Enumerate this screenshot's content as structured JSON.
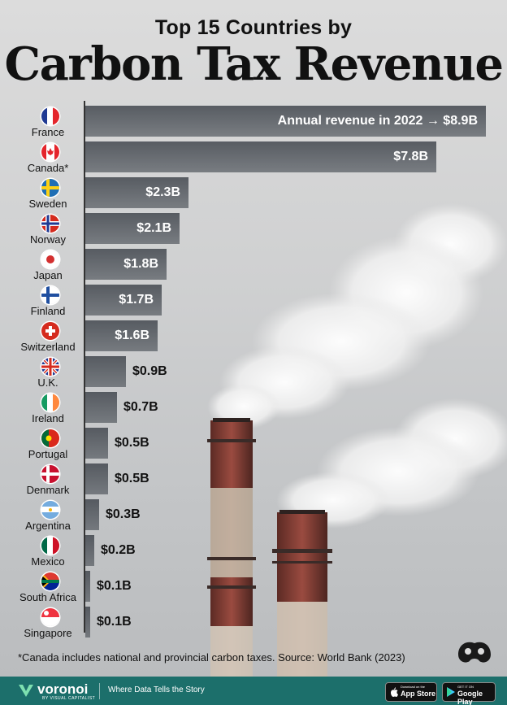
{
  "chart_data": {
    "type": "bar",
    "orientation": "horizontal",
    "subtitle": "Top 15 Countries by",
    "title": "Carbon Tax Revenue",
    "categories": [
      "France",
      "Canada*",
      "Sweden",
      "Norway",
      "Japan",
      "Finland",
      "Switzerland",
      "U.K.",
      "Ireland",
      "Portugal",
      "Denmark",
      "Argentina",
      "Mexico",
      "South Africa",
      "Singapore"
    ],
    "values": [
      8.9,
      7.8,
      2.3,
      2.1,
      1.8,
      1.7,
      1.6,
      0.9,
      0.7,
      0.5,
      0.5,
      0.3,
      0.2,
      0.1,
      0.1
    ],
    "value_labels": [
      "$8.9B",
      "$7.8B",
      "$2.3B",
      "$2.1B",
      "$1.8B",
      "$1.7B",
      "$1.6B",
      "$0.9B",
      "$0.7B",
      "$0.5B",
      "$0.5B",
      "$0.3B",
      "$0.2B",
      "$0.1B",
      "$0.1B"
    ],
    "first_bar_annotation": "Annual revenue in 2022 →",
    "unit": "USD billions",
    "xlim": [
      0,
      8.9
    ],
    "footnote": "*Canada includes national and provincial carbon taxes. Source: World Bank (2023)"
  },
  "flags": [
    {
      "country": "France",
      "colors": [
        "#1f3a93",
        "#ffffff",
        "#e4252c"
      ],
      "pattern": "vertical"
    },
    {
      "country": "Canada*",
      "colors": [
        "#e4252c",
        "#ffffff",
        "#e4252c"
      ],
      "pattern": "canada"
    },
    {
      "country": "Sweden",
      "colors": [
        "#1f6fb5",
        "#fcd116"
      ],
      "pattern": "nordic"
    },
    {
      "country": "Norway",
      "colors": [
        "#d52b1e",
        "#ffffff",
        "#1f3a93"
      ],
      "pattern": "nordic-border"
    },
    {
      "country": "Japan",
      "colors": [
        "#ffffff",
        "#d32f2f"
      ],
      "pattern": "disc"
    },
    {
      "country": "Finland",
      "colors": [
        "#ffffff",
        "#1f4fa0"
      ],
      "pattern": "nordic"
    },
    {
      "country": "Switzerland",
      "colors": [
        "#d52b1e",
        "#ffffff"
      ],
      "pattern": "swiss"
    },
    {
      "country": "U.K.",
      "colors": [
        "#1f3a93",
        "#ffffff",
        "#d52b1e"
      ],
      "pattern": "uk"
    },
    {
      "country": "Ireland",
      "colors": [
        "#169b62",
        "#ffffff",
        "#ff883e"
      ],
      "pattern": "vertical"
    },
    {
      "country": "Portugal",
      "colors": [
        "#046a38",
        "#da291c"
      ],
      "pattern": "portugal"
    },
    {
      "country": "Denmark",
      "colors": [
        "#c8102e",
        "#ffffff"
      ],
      "pattern": "nordic"
    },
    {
      "country": "Argentina",
      "colors": [
        "#74acdf",
        "#ffffff",
        "#74acdf"
      ],
      "pattern": "horizontal"
    },
    {
      "country": "Mexico",
      "colors": [
        "#006847",
        "#ffffff",
        "#ce1126"
      ],
      "pattern": "vertical"
    },
    {
      "country": "South Africa",
      "colors": [
        "#007a4d",
        "#ffb612",
        "#de3831",
        "#002395"
      ],
      "pattern": "southafrica"
    },
    {
      "country": "Singapore",
      "colors": [
        "#ef3340",
        "#ffffff"
      ],
      "pattern": "horizontal2"
    }
  ],
  "footer": {
    "brand": "voronoi",
    "brand_sub": "BY VISUAL CAPITALIST",
    "tagline": "Where Data Tells the Story",
    "app_store_small": "Download on the",
    "app_store": "App Store",
    "google_play_small": "GET IT ON",
    "google_play": "Google Play"
  }
}
